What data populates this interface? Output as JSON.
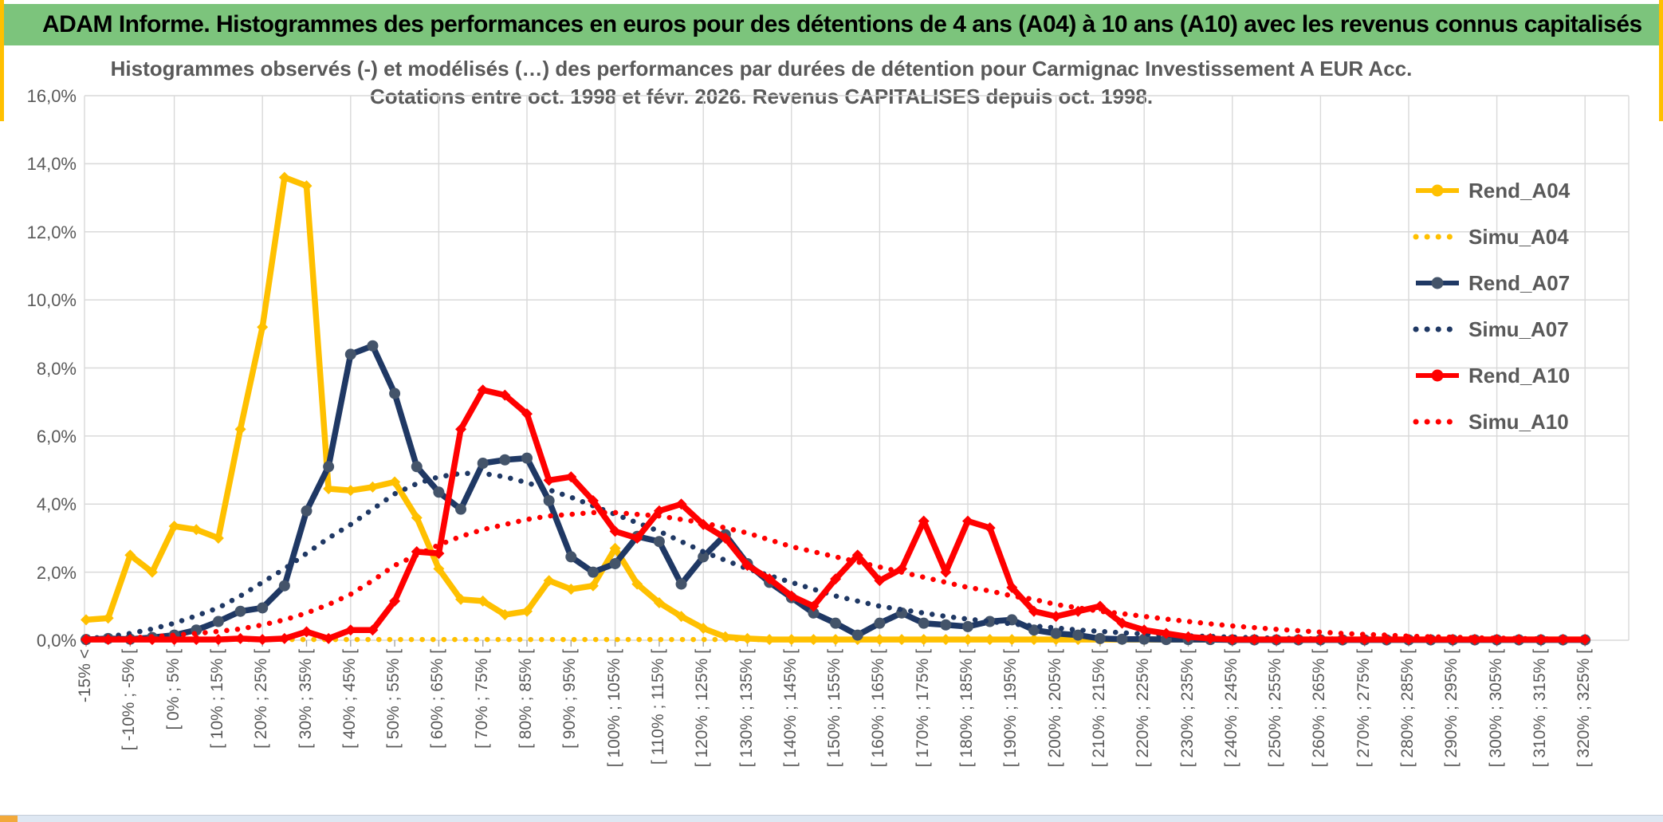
{
  "header": {
    "title": "ADAM Informe. Histogrammes des performances en euros pour des détentions de 4 ans (A04) à 10 ans (A10) avec les revenus connus capitalisés"
  },
  "chart": {
    "title_line1": "Histogrammes observés (-) et modélisés (…) des performances par durées de détention pour Carmignac Investissement A EUR Acc.",
    "title_line2": "Cotations entre oct. 1998 et févr. 2026. Revenus CAPITALISES depuis oct. 1998."
  },
  "colors": {
    "header_green": "#7CC47C",
    "gold": "#FFC000",
    "navy": "#1F3864",
    "navy_marker": "#44546A",
    "red": "#FF0000",
    "grid": "#D9D9D9",
    "text_gray": "#595959",
    "scroll_orange": "#F2A93B"
  },
  "chart_data": {
    "type": "line",
    "title": "Histogrammes observés (-) et modélisés (…) des performances par durées de détention pour Carmignac Investissement A EUR Acc.",
    "subtitle": "Cotations entre oct. 1998 et févr. 2026. Revenus CAPITALISES depuis oct. 1998.",
    "grid": true,
    "legend_position": "right",
    "y_axis": {
      "unit": "%",
      "ylim": [
        0,
        16
      ],
      "tick_labels": [
        "16,0%",
        "14,0%",
        "12,0%",
        "10,0%",
        "8,0%",
        "6,0%",
        "4,0%",
        "2,0%",
        "0,0%"
      ]
    },
    "x_axis": {
      "bin_width_pct": 5,
      "bin_count": 69,
      "labels_every_n_bins": 2,
      "tick_labels": [
        "-15% <",
        "[ -10% ; -5% [",
        "[ 0% ; 5% [",
        "[ 10% ; 15% [",
        "[ 20% ; 25% [",
        "[ 30% ; 35% [",
        "[ 40% ; 45% [",
        "[ 50% ; 55% [",
        "[ 60% ; 65% [",
        "[ 70% ; 75% [",
        "[ 80% ; 85% [",
        "[ 90% ; 95% [",
        "[ 100% ; 105% [",
        "[ 110% ; 115% [",
        "[ 120% ; 125% [",
        "[ 130% ; 135% [",
        "[ 140% ; 145% [",
        "[ 150% ; 155% [",
        "[ 160% ; 165% [",
        "[ 170% ; 175% [",
        "[ 180% ; 185% [",
        "[ 190% ; 195% [",
        "[ 200% ; 205% [",
        "[ 210% ; 215% [",
        "[ 220% ; 225% [",
        "[ 230% ; 235% [",
        "[ 240% ; 245% [",
        "[ 250% ; 255% [",
        "[ 260% ; 265% [",
        "[ 270% ; 275% [",
        "[ 280% ; 285% [",
        "[ 290% ; 295% [",
        "[ 300% ; 305% [",
        "[ 310% ; 315% [",
        "[ 320% ; 325% ["
      ]
    },
    "series": [
      {
        "name": "Rend_A04",
        "color": "#FFC000",
        "line_style": "solid",
        "marker": "diamond",
        "values": [
          0.6,
          0.65,
          2.5,
          2.0,
          3.35,
          3.25,
          3.0,
          6.2,
          9.2,
          13.6,
          13.35,
          4.45,
          4.4,
          4.5,
          4.65,
          3.6,
          2.1,
          1.2,
          1.15,
          0.75,
          0.85,
          1.75,
          1.5,
          1.6,
          2.7,
          1.65,
          1.1,
          0.7,
          0.35,
          0.1,
          0.05,
          0.02,
          0.02,
          0.02,
          0.02,
          0.02,
          0.02,
          0.02,
          0.02,
          0.02,
          0.02,
          0.02,
          0.02,
          0.02,
          0.02,
          0.02,
          0.02,
          0.02,
          0.02,
          0.02,
          0.02,
          0.02,
          0.02,
          0.02,
          0.02,
          0.02,
          0.02,
          0.02,
          0.02,
          0.02,
          0.02,
          0.02,
          0.02,
          0.02,
          0.02,
          0.02,
          0.02,
          0.02,
          0.02
        ]
      },
      {
        "name": "Simu_A04",
        "color": "#FFC000",
        "line_style": "dotted",
        "marker": "none",
        "values": [
          0.02,
          0.02,
          0.02,
          0.02,
          0.02,
          0.02,
          0.02,
          0.02,
          0.02,
          0.02,
          0.02,
          0.02,
          0.02,
          0.02,
          0.02,
          0.02,
          0.02,
          0.02,
          0.02,
          0.02,
          0.02,
          0.02,
          0.02,
          0.02,
          0.02,
          0.02,
          0.02,
          0.02,
          0.02,
          0.02,
          0.02,
          0.02,
          0.02,
          0.02,
          0.02,
          0.02,
          0.02,
          0.02,
          0.02,
          0.02,
          0.02,
          0.02,
          0.02,
          0.02,
          0.02,
          0.02,
          0.02,
          0.02,
          0.02,
          0.02,
          0.02,
          0.02,
          0.02,
          0.02,
          0.02,
          0.02,
          0.02,
          0.02,
          0.02,
          0.02,
          0.02,
          0.02,
          0.02,
          0.02,
          0.02,
          0.02,
          0.02,
          0.02,
          0.02
        ]
      },
      {
        "name": "Rend_A07",
        "color": "#1F3864",
        "line_style": "solid",
        "marker": "circle",
        "values": [
          0.02,
          0.05,
          0.03,
          0.08,
          0.15,
          0.3,
          0.55,
          0.85,
          0.95,
          1.6,
          3.8,
          5.1,
          8.4,
          8.65,
          7.25,
          5.1,
          4.35,
          3.85,
          5.2,
          5.3,
          5.35,
          4.1,
          2.45,
          2.0,
          2.25,
          3.05,
          2.9,
          1.65,
          2.45,
          3.1,
          2.25,
          1.7,
          1.25,
          0.8,
          0.5,
          0.15,
          0.5,
          0.8,
          0.5,
          0.45,
          0.4,
          0.55,
          0.6,
          0.3,
          0.2,
          0.15,
          0.05,
          0.03,
          0.03,
          0.02,
          0.02,
          0.02,
          0.01,
          0.01,
          0.01,
          0.01,
          0.01,
          0.01,
          0.01,
          0.01,
          0.01,
          0.01,
          0.01,
          0.01,
          0.01,
          0.01,
          0.01,
          0.01,
          0.01
        ]
      },
      {
        "name": "Simu_A07",
        "color": "#1F3864",
        "line_style": "dotted",
        "marker": "none",
        "values": [
          0.05,
          0.1,
          0.2,
          0.33,
          0.5,
          0.72,
          0.95,
          1.3,
          1.7,
          2.1,
          2.55,
          3.0,
          3.4,
          3.85,
          4.3,
          4.6,
          4.8,
          4.9,
          4.9,
          4.8,
          4.63,
          4.42,
          4.2,
          3.95,
          3.7,
          3.45,
          3.2,
          2.9,
          2.6,
          2.35,
          2.1,
          1.9,
          1.7,
          1.5,
          1.3,
          1.15,
          1.0,
          0.9,
          0.8,
          0.7,
          0.62,
          0.55,
          0.48,
          0.42,
          0.36,
          0.3,
          0.26,
          0.22,
          0.18,
          0.15,
          0.13,
          0.11,
          0.09,
          0.07,
          0.06,
          0.05,
          0.04,
          0.03,
          0.03,
          0.02,
          0.02,
          0.02,
          0.01,
          0.01,
          0.01,
          0.01,
          0.01,
          0.01,
          0.01
        ]
      },
      {
        "name": "Rend_A10",
        "color": "#FF0000",
        "line_style": "solid",
        "marker": "diamond",
        "values": [
          0.02,
          0.02,
          0.02,
          0.02,
          0.02,
          0.02,
          0.02,
          0.05,
          0.02,
          0.05,
          0.25,
          0.05,
          0.3,
          0.3,
          1.15,
          2.6,
          2.55,
          6.2,
          7.35,
          7.2,
          6.65,
          4.7,
          4.8,
          4.1,
          3.2,
          3.0,
          3.8,
          4.0,
          3.4,
          3.0,
          2.2,
          1.8,
          1.3,
          1.0,
          1.8,
          2.5,
          1.75,
          2.1,
          3.5,
          2.0,
          3.5,
          3.3,
          1.55,
          0.85,
          0.7,
          0.85,
          1.0,
          0.5,
          0.3,
          0.2,
          0.1,
          0.05,
          0.02,
          0.02,
          0.02,
          0.02,
          0.02,
          0.02,
          0.02,
          0.02,
          0.02,
          0.02,
          0.02,
          0.02,
          0.02,
          0.02,
          0.02,
          0.02,
          0.02
        ]
      },
      {
        "name": "Simu_A10",
        "color": "#FF0000",
        "line_style": "dotted",
        "marker": "none",
        "values": [
          0.02,
          0.04,
          0.07,
          0.1,
          0.15,
          0.2,
          0.26,
          0.33,
          0.45,
          0.6,
          0.8,
          1.05,
          1.35,
          1.75,
          2.2,
          2.5,
          2.8,
          3.05,
          3.25,
          3.4,
          3.55,
          3.65,
          3.7,
          3.75,
          3.75,
          3.7,
          3.65,
          3.55,
          3.45,
          3.3,
          3.15,
          2.95,
          2.75,
          2.6,
          2.45,
          2.3,
          2.15,
          2.0,
          1.85,
          1.7,
          1.55,
          1.45,
          1.3,
          1.2,
          1.05,
          0.95,
          0.85,
          0.78,
          0.7,
          0.62,
          0.55,
          0.48,
          0.42,
          0.37,
          0.32,
          0.28,
          0.24,
          0.2,
          0.17,
          0.15,
          0.12,
          0.1,
          0.09,
          0.07,
          0.06,
          0.05,
          0.04,
          0.03,
          0.03
        ]
      }
    ]
  }
}
